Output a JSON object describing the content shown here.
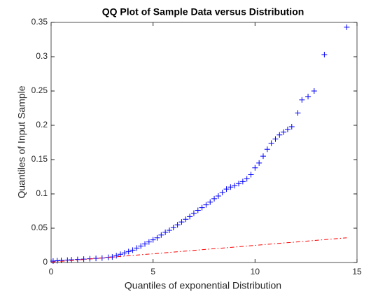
{
  "chart_data": {
    "type": "scatter",
    "title": "QQ Plot of Sample Data versus Distribution",
    "x_label": "Quantiles of exponential Distribution",
    "y_label": "Quantiles of Input Sample",
    "xlim": [
      0,
      15
    ],
    "xticks": [
      0,
      5,
      10,
      15
    ],
    "ylim": [
      0,
      0.35
    ],
    "yticks": [
      0,
      0.05,
      0.1,
      0.15,
      0.2,
      0.25,
      0.3,
      0.35
    ],
    "grid": false,
    "series": [
      {
        "name": "Sample quantiles",
        "type": "scatter",
        "marker": "+",
        "color": "#0000ff",
        "x": [
          0.1,
          0.3,
          0.5,
          0.8,
          1.0,
          1.3,
          1.6,
          1.9,
          2.2,
          2.5,
          2.8,
          3.0,
          3.2,
          3.4,
          3.6,
          3.8,
          4.0,
          4.2,
          4.4,
          4.6,
          4.8,
          5.0,
          5.2,
          5.4,
          5.6,
          5.8,
          6.0,
          6.2,
          6.4,
          6.6,
          6.8,
          7.0,
          7.2,
          7.4,
          7.6,
          7.8,
          8.0,
          8.2,
          8.4,
          8.6,
          8.8,
          9.0,
          9.2,
          9.4,
          9.6,
          9.8,
          10.0,
          10.2,
          10.4,
          10.6,
          10.8,
          11.0,
          11.2,
          11.4,
          11.6,
          11.8,
          12.1,
          12.3,
          12.6,
          12.9,
          13.4,
          14.5
        ],
        "values": [
          0.002,
          0.0025,
          0.003,
          0.0035,
          0.004,
          0.0045,
          0.005,
          0.0055,
          0.006,
          0.0065,
          0.0075,
          0.008,
          0.01,
          0.012,
          0.014,
          0.016,
          0.018,
          0.021,
          0.024,
          0.027,
          0.03,
          0.033,
          0.036,
          0.04,
          0.044,
          0.047,
          0.051,
          0.055,
          0.059,
          0.063,
          0.067,
          0.072,
          0.076,
          0.08,
          0.084,
          0.088,
          0.093,
          0.097,
          0.102,
          0.107,
          0.11,
          0.112,
          0.115,
          0.118,
          0.122,
          0.128,
          0.138,
          0.145,
          0.155,
          0.165,
          0.174,
          0.18,
          0.186,
          0.19,
          0.194,
          0.198,
          0.218,
          0.237,
          0.242,
          0.25,
          0.303,
          0.343
        ]
      },
      {
        "name": "Reference line",
        "type": "line",
        "dash": "dashdot",
        "color": "#ff0000",
        "x": [
          0,
          14.5
        ],
        "values": [
          0.0005,
          0.036
        ]
      }
    ]
  }
}
